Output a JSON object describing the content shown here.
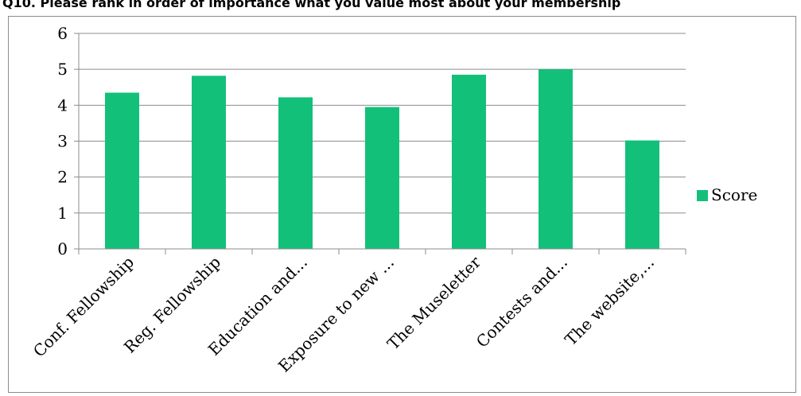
{
  "heading": "Q10. Please rank in order of importance what you value most about your membership",
  "chart_data": {
    "type": "bar",
    "categories": [
      "Conf. Fellowship",
      "Reg. Fellowship",
      "Education and...",
      "Exposure to new ...",
      "The Museletter",
      "Contests and...",
      "The website,..."
    ],
    "series": [
      {
        "name": "Score",
        "values": [
          4.35,
          4.82,
          4.22,
          3.95,
          4.85,
          5.0,
          3.02
        ]
      }
    ],
    "yticks": [
      "0",
      "1",
      "2",
      "3",
      "4",
      "5",
      "6"
    ],
    "ylim": [
      0,
      6
    ],
    "grid": true,
    "legend": "right",
    "colors": {
      "bar": "#13c07a",
      "grid": "#8c8c8c",
      "axis": "#8c8c8c"
    }
  }
}
